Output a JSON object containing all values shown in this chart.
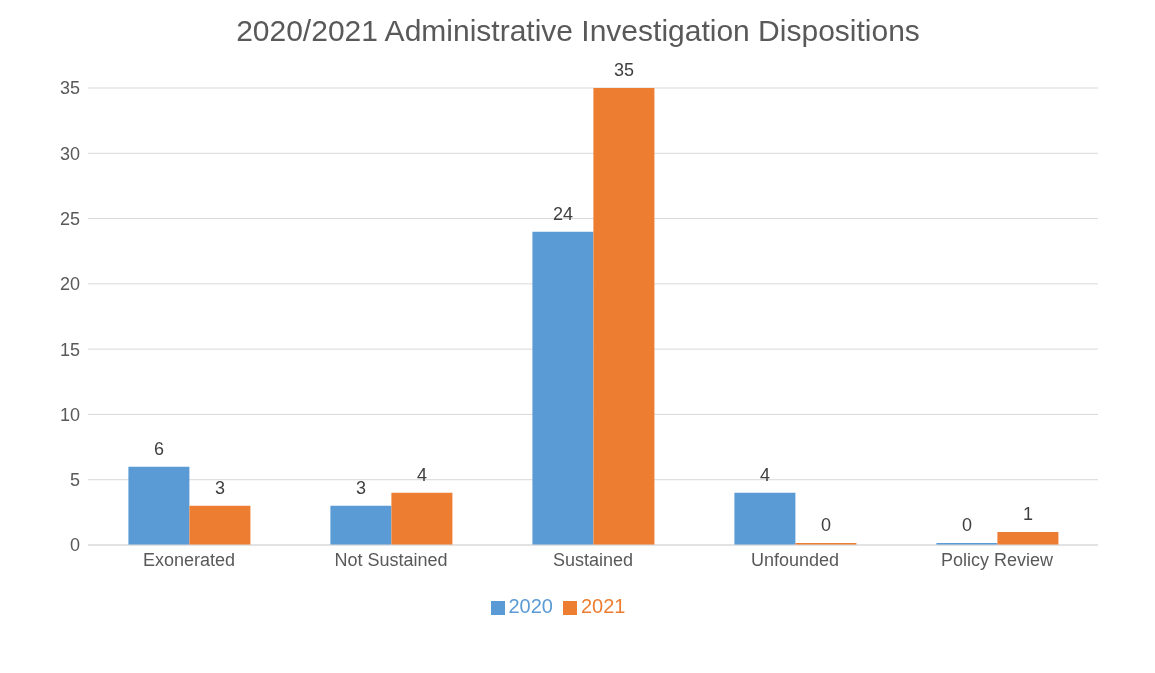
{
  "chart_data": {
    "type": "bar",
    "title": "2020/2021 Administrative Investigation Dispositions",
    "categories": [
      "Exonerated",
      "Not Sustained",
      "Sustained",
      "Unfounded",
      "Policy Review"
    ],
    "series": [
      {
        "name": "2020",
        "color": "#5b9bd5",
        "values": [
          6,
          3,
          24,
          4,
          0
        ]
      },
      {
        "name": "2021",
        "color": "#ed7d31",
        "values": [
          3,
          4,
          35,
          0,
          1
        ]
      }
    ],
    "ylim": [
      0,
      35
    ],
    "yticks": [
      0,
      5,
      10,
      15,
      20,
      25,
      30,
      35
    ],
    "grid": "y",
    "legend": "bottom",
    "data_labels": true
  }
}
